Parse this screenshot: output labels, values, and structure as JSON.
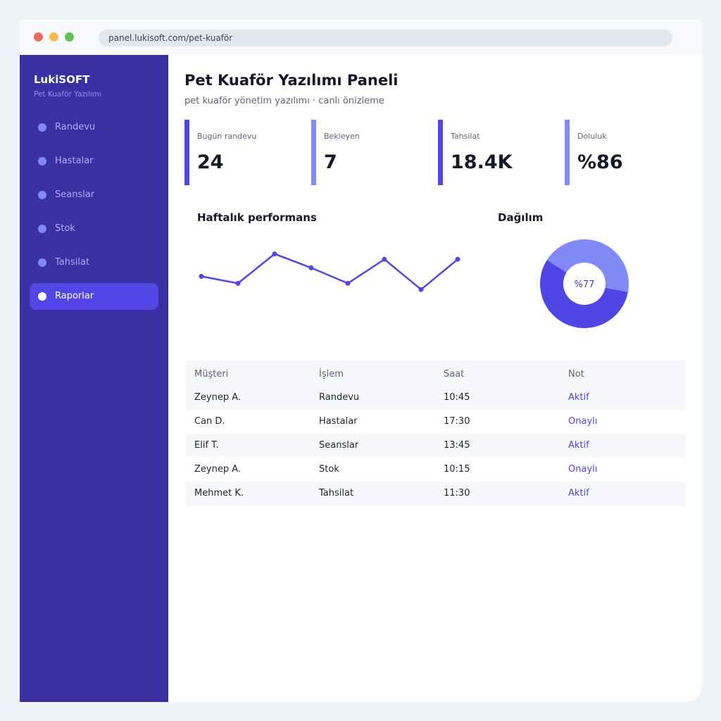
{
  "browser": {
    "url": "panel.lukisoft.com/pet-kuaför"
  },
  "sidebar": {
    "brand": "LukiSOFT",
    "brand_sub": "Pet Kuaför Yazılımı",
    "items": [
      {
        "label": "Randevu",
        "active": false
      },
      {
        "label": "Hastalar",
        "active": false
      },
      {
        "label": "Seanslar",
        "active": false
      },
      {
        "label": "Stok",
        "active": false
      },
      {
        "label": "Tahsilat",
        "active": false
      },
      {
        "label": "Raporlar",
        "active": true
      }
    ]
  },
  "header": {
    "title": "Pet Kuaför Yazılımı Paneli",
    "subtitle": "pet kuaför yönetim yazılımı · canlı önizleme"
  },
  "stats": [
    {
      "label": "Bugün randevu",
      "value": "24"
    },
    {
      "label": "Bekleyen",
      "value": "7"
    },
    {
      "label": "Tahsilat",
      "value": "18.4K"
    },
    {
      "label": "Doluluk",
      "value": "%86"
    }
  ],
  "performance": {
    "title": "Haftalık performans"
  },
  "distribution": {
    "title": "Dağılım",
    "center_label": "%77"
  },
  "chart_data": [
    {
      "type": "line",
      "title": "Haftalık performans",
      "x": [
        1,
        2,
        3,
        4,
        5,
        6,
        7,
        8
      ],
      "values": [
        55,
        46,
        84,
        66,
        46,
        77,
        38,
        77
      ],
      "ylim": [
        0,
        100
      ],
      "color": "#4f46e5"
    },
    {
      "type": "pie",
      "title": "Dağılım",
      "values": [
        56,
        44
      ],
      "colors": [
        "#4f46e5",
        "#8189f6"
      ],
      "center_label": "%77"
    }
  ],
  "table": {
    "headers": [
      "Müşteri",
      "İşlem",
      "Saat",
      "Not"
    ],
    "rows": [
      {
        "customer": "Zeynep A.",
        "service": "Randevu",
        "time": "10:45",
        "note": "Aktif"
      },
      {
        "customer": "Can D.",
        "service": "Hastalar",
        "time": "17:30",
        "note": "Onaylı"
      },
      {
        "customer": "Elif T.",
        "service": "Seanslar",
        "time": "13:45",
        "note": "Aktif"
      },
      {
        "customer": "Zeynep A.",
        "service": "Stok",
        "time": "10:15",
        "note": "Onaylı"
      },
      {
        "customer": "Mehmet K.",
        "service": "Tahsilat",
        "time": "11:30",
        "note": "Aktif"
      }
    ]
  },
  "colors": {
    "accent": "#4f46e5",
    "accent_light": "#818cf8",
    "sidebar": "#3830a3"
  }
}
